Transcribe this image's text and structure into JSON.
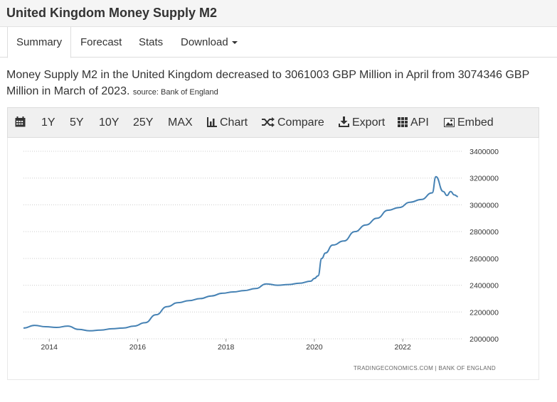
{
  "page": {
    "title": "United Kingdom Money Supply M2"
  },
  "tabs": [
    {
      "label": "Summary"
    },
    {
      "label": "Forecast"
    },
    {
      "label": "Stats"
    },
    {
      "label": "Download"
    }
  ],
  "description": {
    "text": "Money Supply M2 in the United Kingdom decreased to 3061003 GBP Million in April from 3074346 GBP Million in March of 2023.",
    "source": "source: Bank of England"
  },
  "toolbar": {
    "range_1y": "1Y",
    "range_5y": "5Y",
    "range_10y": "10Y",
    "range_25y": "25Y",
    "range_max": "MAX",
    "chart": "Chart",
    "compare": "Compare",
    "export": "Export",
    "api": "API",
    "embed": "Embed"
  },
  "colors": {
    "line": "#4682b4",
    "grid": "#cccccc"
  },
  "chart_data": {
    "type": "line",
    "title": "",
    "xlabel": "",
    "ylabel": "",
    "x_tick_labels": [
      "2014",
      "2016",
      "2018",
      "2020",
      "2022"
    ],
    "y_tick_labels": [
      "2000000",
      "2200000",
      "2400000",
      "2600000",
      "2800000",
      "3000000",
      "3200000",
      "3400000"
    ],
    "ylim": [
      2000000,
      3400000
    ],
    "xlim": [
      "2013-06",
      "2023-05"
    ],
    "grid": "horizontal-dotted",
    "credit": "TRADINGECONOMICS.COM  |  BANK OF ENGLAND",
    "series": [
      {
        "x": [
          "2013-06",
          "2013-09",
          "2013-12",
          "2014-03",
          "2014-06",
          "2014-09",
          "2014-12",
          "2015-03",
          "2015-06",
          "2015-09",
          "2015-12",
          "2016-03",
          "2016-06",
          "2016-09",
          "2016-12",
          "2017-03",
          "2017-06",
          "2017-09",
          "2017-12",
          "2018-03",
          "2018-06",
          "2018-09",
          "2018-12",
          "2019-03",
          "2019-06",
          "2019-09",
          "2019-12",
          "2020-01",
          "2020-02",
          "2020-03",
          "2020-04",
          "2020-06",
          "2020-09",
          "2020-12",
          "2021-03",
          "2021-06",
          "2021-09",
          "2021-12",
          "2022-03",
          "2022-06",
          "2022-09",
          "2022-10",
          "2022-12",
          "2023-01",
          "2023-02",
          "2023-03",
          "2023-04"
        ],
        "values": [
          2080000,
          2100000,
          2090000,
          2085000,
          2095000,
          2070000,
          2060000,
          2065000,
          2075000,
          2080000,
          2095000,
          2120000,
          2180000,
          2240000,
          2270000,
          2285000,
          2300000,
          2320000,
          2340000,
          2350000,
          2360000,
          2375000,
          2410000,
          2400000,
          2405000,
          2415000,
          2430000,
          2450000,
          2470000,
          2600000,
          2640000,
          2700000,
          2730000,
          2800000,
          2850000,
          2900000,
          2960000,
          2980000,
          3020000,
          3040000,
          3090000,
          3210000,
          3100000,
          3070000,
          3100000,
          3074346,
          3061003
        ]
      }
    ]
  }
}
